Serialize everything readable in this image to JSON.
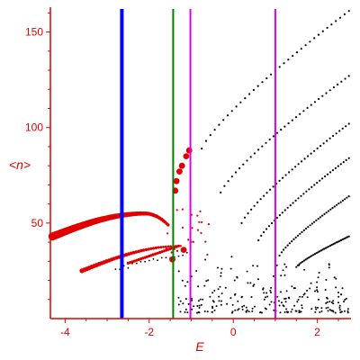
{
  "chart_data": {
    "type": "scatter",
    "title": "",
    "xlabel": "E",
    "ylabel": "<n>",
    "xlim": [
      -4.35,
      2.8
    ],
    "ylim": [
      0,
      163
    ],
    "x_ticks": [
      -4,
      -2,
      0,
      2
    ],
    "y_ticks": [
      50,
      100,
      150
    ],
    "grid": false,
    "colors": {
      "axes": "#e00000",
      "red_points": "#e00000",
      "black_points": "#000000",
      "blue_line": "#0000ff",
      "green_line": "#008000",
      "magenta_line": "#e000e0"
    },
    "vertical_lines": [
      {
        "x": -2.65,
        "color": "#0000ff",
        "width": 4
      },
      {
        "x": -1.43,
        "color": "#008000",
        "width": 2
      },
      {
        "x": -1.02,
        "color": "#e000e0",
        "width": 2
      },
      {
        "x": 1.0,
        "color": "#e000e0",
        "width": 2
      }
    ],
    "red_band_1": {
      "x_start": -4.3,
      "x_end": -1.55,
      "peak_x": -2.1,
      "peak_y": 55,
      "start_y": 43,
      "end_y": 49
    },
    "red_band_2": {
      "x_start": -3.6,
      "x_end": -1.25,
      "start_y": 25,
      "end_y": 38
    },
    "red_band_3": {
      "x_start": -2.5,
      "x_end": -1.3,
      "start_y": 29,
      "end_y": 38
    },
    "red_big_points": [
      {
        "x": -1.38,
        "y": 67
      },
      {
        "x": -1.35,
        "y": 72
      },
      {
        "x": -1.28,
        "y": 77
      },
      {
        "x": -1.22,
        "y": 80
      },
      {
        "x": -1.12,
        "y": 85
      },
      {
        "x": -1.05,
        "y": 88
      },
      {
        "x": -1.45,
        "y": 31
      },
      {
        "x": -1.18,
        "y": 36
      }
    ],
    "black_arcs": [
      {
        "x_start": -0.75,
        "x_end": 2.75,
        "y_start": 89,
        "y_end": 161
      },
      {
        "x_start": -0.3,
        "x_end": 2.75,
        "y_start": 66,
        "y_end": 127
      },
      {
        "x_start": 0.2,
        "x_end": 2.75,
        "y_start": 50,
        "y_end": 102
      },
      {
        "x_start": 0.6,
        "x_end": 2.75,
        "y_start": 41,
        "y_end": 84
      },
      {
        "x_start": 1.1,
        "x_end": 2.75,
        "y_start": 33,
        "y_end": 64
      },
      {
        "x_start": 1.5,
        "x_end": 2.75,
        "y_start": 27,
        "y_end": 43
      }
    ],
    "black_scatter_region": {
      "x_min": -1.3,
      "x_max": 2.75,
      "y_min": 0,
      "y_max": 30
    }
  }
}
